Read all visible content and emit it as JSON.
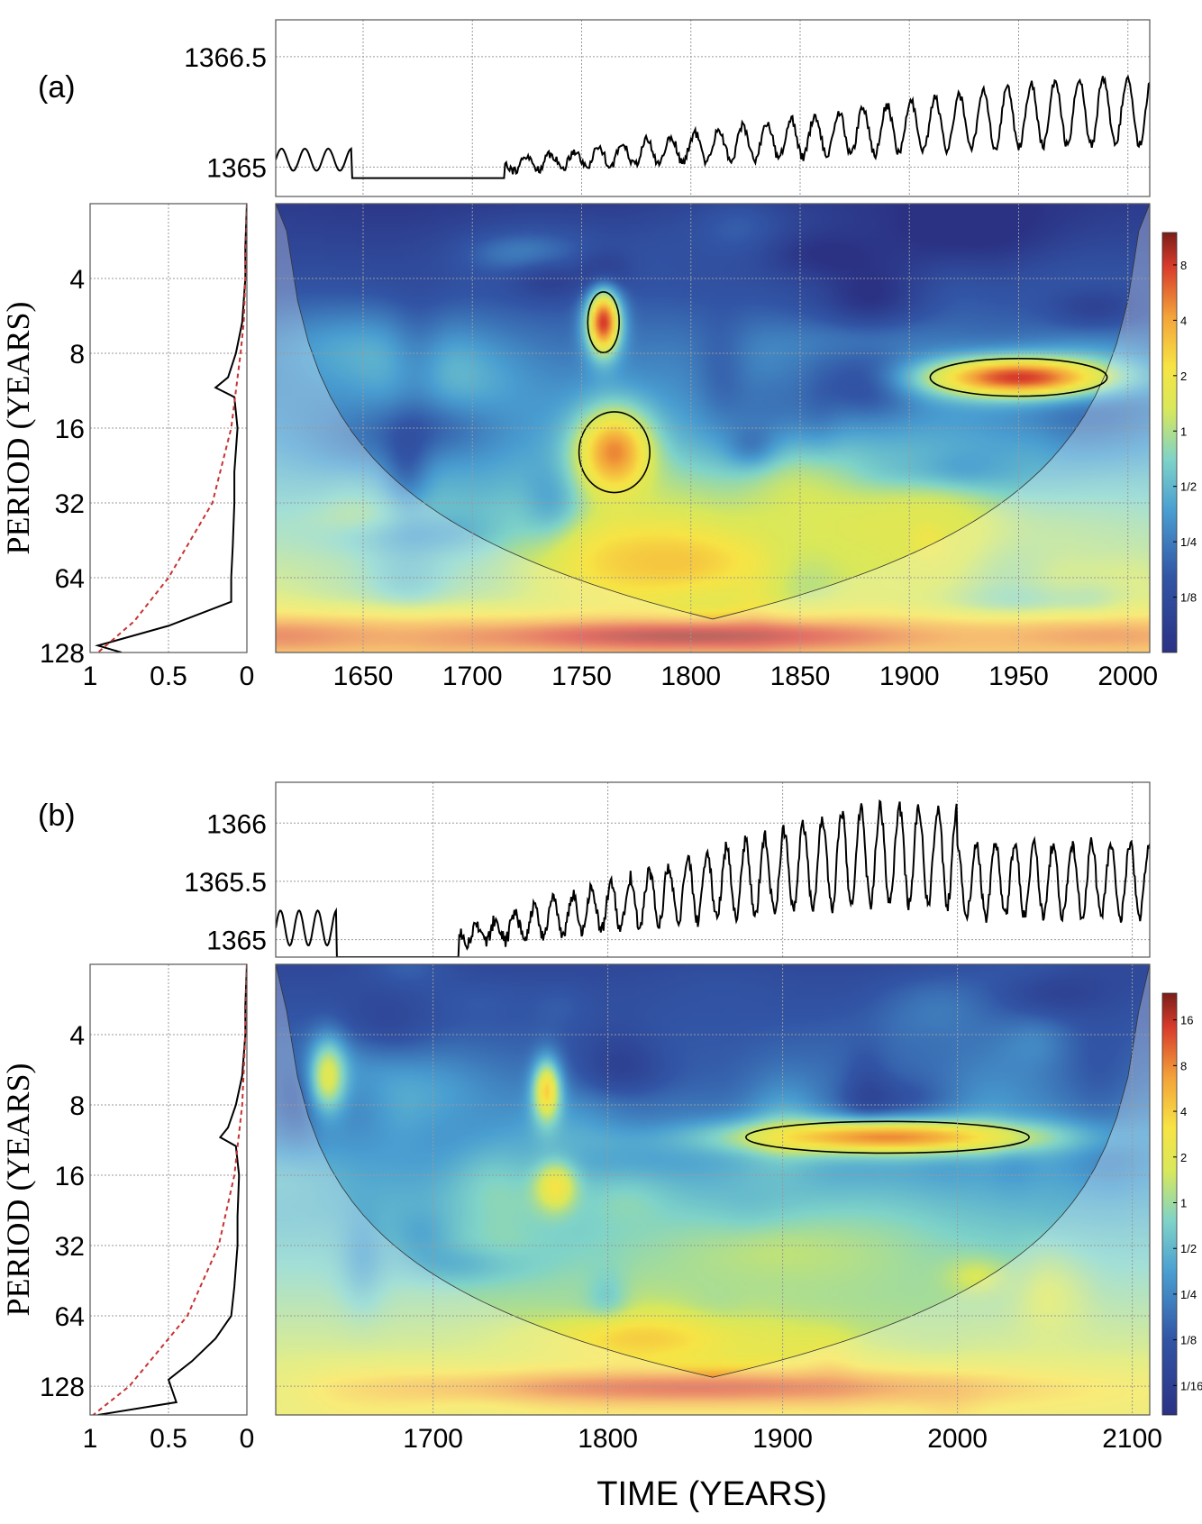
{
  "chart_data": [
    {
      "id": "a",
      "type": "heatmap",
      "panel_label": "(a)",
      "xlabel": "",
      "ylabel": "PERIOD (YEARS)",
      "xlim": [
        1610,
        2010
      ],
      "xticks": [
        1650,
        1700,
        1750,
        1800,
        1850,
        1900,
        1950,
        2000
      ],
      "ylim": [
        2,
        128
      ],
      "y_scale": "log2",
      "yticks": [
        4,
        8,
        16,
        32,
        64,
        128
      ],
      "top_series": {
        "type": "line",
        "ylim": [
          1364.6,
          1367.0
        ],
        "yticks": [
          1365,
          1366.5
        ]
      },
      "global_spectrum": {
        "type": "line",
        "xlim": [
          1,
          0
        ],
        "xticks": [
          1,
          0.5,
          0
        ],
        "series": [
          {
            "style": "solid",
            "color": "#000000",
            "period": [
              2,
              3,
              4,
              6,
              8,
              10,
              11,
              12,
              16,
              24,
              32,
              48,
              64,
              80,
              100,
              120,
              128
            ],
            "power": [
              0.0,
              0.01,
              0.01,
              0.03,
              0.07,
              0.12,
              0.2,
              0.08,
              0.06,
              0.08,
              0.08,
              0.09,
              0.1,
              0.1,
              0.5,
              0.95,
              0.8
            ]
          },
          {
            "style": "dashed",
            "color": "#c83232",
            "period": [
              2,
              4,
              6,
              8,
              16,
              32,
              64,
              96,
              128
            ],
            "power": [
              0.0,
              0.01,
              0.02,
              0.04,
              0.1,
              0.22,
              0.5,
              0.72,
              0.95
            ]
          }
        ]
      },
      "colorbar": {
        "ticks": [
          "8",
          "4",
          "2",
          "1",
          "1/2",
          "1/4",
          "1/8"
        ],
        "values": [
          8,
          4,
          2,
          1,
          0.5,
          0.25,
          0.125
        ],
        "range": [
          0.0625,
          12
        ]
      },
      "features": [
        {
          "t": 1800,
          "p": 110,
          "power": 10,
          "dt": 140,
          "dp": 0.28
        },
        {
          "t": 1610,
          "p": 110,
          "power": 6,
          "dt": 70,
          "dp": 0.3
        },
        {
          "t": 1990,
          "p": 110,
          "power": 5,
          "dt": 80,
          "dp": 0.3
        },
        {
          "t": 1760,
          "p": 6,
          "power": 8,
          "dt": 8,
          "dp": 0.45
        },
        {
          "t": 1765,
          "p": 20,
          "power": 5,
          "dt": 18,
          "dp": 0.6
        },
        {
          "t": 1790,
          "p": 55,
          "power": 3,
          "dt": 60,
          "dp": 0.6
        },
        {
          "t": 1950,
          "p": 10,
          "power": 8,
          "dt": 45,
          "dp": 0.28
        },
        {
          "t": 1900,
          "p": 40,
          "power": 1.5,
          "dt": 80,
          "dp": 0.7
        }
      ]
    },
    {
      "id": "b",
      "type": "heatmap",
      "panel_label": "(b)",
      "xlabel": "TIME (YEARS)",
      "ylabel": "PERIOD (YEARS)",
      "xlim": [
        1610,
        2110
      ],
      "xticks": [
        1700,
        1800,
        1900,
        2000,
        2100
      ],
      "ylim": [
        2,
        170
      ],
      "y_scale": "log2",
      "yticks": [
        4,
        8,
        16,
        32,
        64,
        128
      ],
      "top_series": {
        "type": "line",
        "ylim": [
          1364.85,
          1366.35
        ],
        "yticks": [
          1365,
          1365.5,
          1366
        ]
      },
      "global_spectrum": {
        "type": "line",
        "xlim": [
          1,
          0
        ],
        "xticks": [
          1,
          0.5,
          0
        ],
        "series": [
          {
            "style": "solid",
            "color": "#000000",
            "period": [
              2,
              3,
              4,
              6,
              8,
              10,
              11,
              12,
              16,
              24,
              32,
              48,
              64,
              80,
              100,
              120,
              150,
              170
            ],
            "power": [
              0.0,
              0.01,
              0.01,
              0.03,
              0.07,
              0.12,
              0.17,
              0.07,
              0.05,
              0.06,
              0.06,
              0.08,
              0.1,
              0.2,
              0.35,
              0.5,
              0.45,
              0.95
            ]
          },
          {
            "style": "dashed",
            "color": "#c83232",
            "period": [
              2,
              4,
              8,
              16,
              32,
              64,
              128,
              170
            ],
            "power": [
              0.0,
              0.01,
              0.03,
              0.08,
              0.18,
              0.38,
              0.75,
              0.98
            ]
          }
        ]
      },
      "colorbar": {
        "ticks": [
          "16",
          "8",
          "4",
          "2",
          "1",
          "1/2",
          "1/4",
          "1/8",
          "1/16"
        ],
        "values": [
          16,
          8,
          4,
          2,
          1,
          0.5,
          0.25,
          0.125,
          0.0625
        ],
        "range": [
          0.04,
          24
        ]
      },
      "features": [
        {
          "t": 1850,
          "p": 130,
          "power": 12,
          "dt": 200,
          "dp": 0.3
        },
        {
          "t": 1820,
          "p": 80,
          "power": 4,
          "dt": 60,
          "dp": 0.4
        },
        {
          "t": 1765,
          "p": 7,
          "power": 4,
          "dt": 8,
          "dp": 0.45
        },
        {
          "t": 1770,
          "p": 18,
          "power": 3,
          "dt": 12,
          "dp": 0.35
        },
        {
          "t": 1960,
          "p": 11,
          "power": 8,
          "dt": 90,
          "dp": 0.25
        },
        {
          "t": 1900,
          "p": 35,
          "power": 1.3,
          "dt": 90,
          "dp": 0.7
        },
        {
          "t": 1640,
          "p": 6,
          "power": 2,
          "dt": 10,
          "dp": 0.5
        }
      ]
    }
  ]
}
